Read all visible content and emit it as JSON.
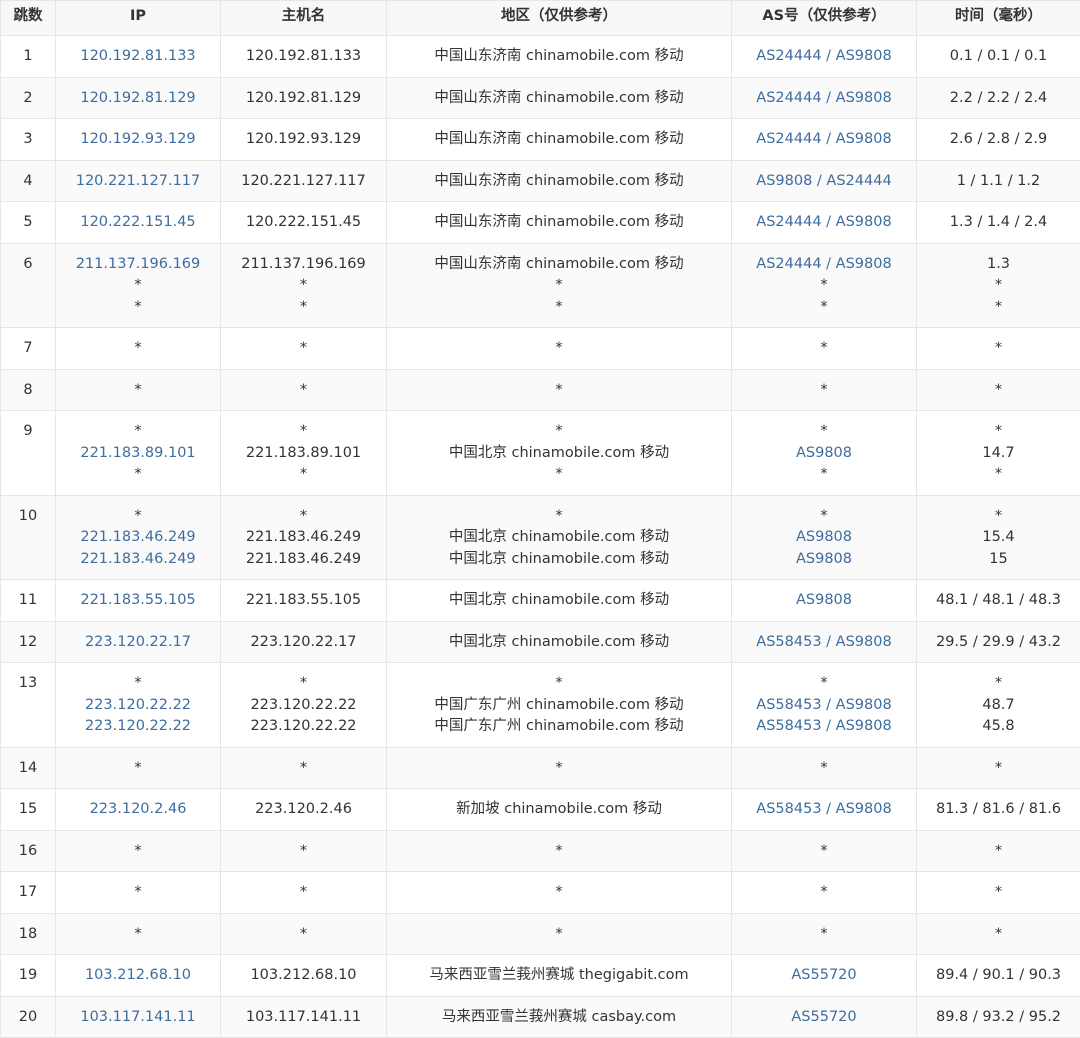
{
  "table": {
    "header": [
      "跳数",
      "IP",
      "主机名",
      "地区（仅供参考）",
      "AS号（仅供参考）",
      "时间（毫秒）"
    ],
    "rows": [
      [
        "1",
        [
          "120.192.81.133"
        ],
        [
          "120.192.81.133"
        ],
        [
          "中国山东济南 chinamobile.com 移动"
        ],
        [
          "AS24444 / AS9808"
        ],
        [
          "0.1 / 0.1 / 0.1"
        ]
      ],
      [
        "2",
        [
          "120.192.81.129"
        ],
        [
          "120.192.81.129"
        ],
        [
          "中国山东济南 chinamobile.com 移动"
        ],
        [
          "AS24444 / AS9808"
        ],
        [
          "2.2 / 2.2 / 2.4"
        ]
      ],
      [
        "3",
        [
          "120.192.93.129"
        ],
        [
          "120.192.93.129"
        ],
        [
          "中国山东济南 chinamobile.com 移动"
        ],
        [
          "AS24444 / AS9808"
        ],
        [
          "2.6 / 2.8 / 2.9"
        ]
      ],
      [
        "4",
        [
          "120.221.127.117"
        ],
        [
          "120.221.127.117"
        ],
        [
          "中国山东济南 chinamobile.com 移动"
        ],
        [
          "AS9808 / AS24444"
        ],
        [
          "1 / 1.1 / 1.2"
        ]
      ],
      [
        "5",
        [
          "120.222.151.45"
        ],
        [
          "120.222.151.45"
        ],
        [
          "中国山东济南 chinamobile.com 移动"
        ],
        [
          "AS24444 / AS9808"
        ],
        [
          "1.3 / 1.4 / 2.4"
        ]
      ],
      [
        "6",
        [
          "211.137.196.169",
          "*",
          "*"
        ],
        [
          "211.137.196.169",
          "*",
          "*"
        ],
        [
          "中国山东济南 chinamobile.com 移动",
          "*",
          "*"
        ],
        [
          "AS24444 / AS9808",
          "*",
          "*"
        ],
        [
          "1.3",
          "*",
          "*"
        ]
      ],
      [
        "7",
        [
          "*"
        ],
        [
          "*"
        ],
        [
          "*"
        ],
        [
          "*"
        ],
        [
          "*"
        ]
      ],
      [
        "8",
        [
          "*"
        ],
        [
          "*"
        ],
        [
          "*"
        ],
        [
          "*"
        ],
        [
          "*"
        ]
      ],
      [
        "9",
        [
          "*",
          "221.183.89.101",
          "*"
        ],
        [
          "*",
          "221.183.89.101",
          "*"
        ],
        [
          "*",
          "中国北京 chinamobile.com 移动",
          "*"
        ],
        [
          "*",
          "AS9808",
          "*"
        ],
        [
          "*",
          "14.7",
          "*"
        ]
      ],
      [
        "10",
        [
          "*",
          "221.183.46.249",
          "221.183.46.249"
        ],
        [
          "*",
          "221.183.46.249",
          "221.183.46.249"
        ],
        [
          "*",
          "中国北京 chinamobile.com 移动",
          "中国北京 chinamobile.com 移动"
        ],
        [
          "*",
          "AS9808",
          "AS9808"
        ],
        [
          "*",
          "15.4",
          "15"
        ]
      ],
      [
        "11",
        [
          "221.183.55.105"
        ],
        [
          "221.183.55.105"
        ],
        [
          "中国北京 chinamobile.com 移动"
        ],
        [
          "AS9808"
        ],
        [
          "48.1 / 48.1 / 48.3"
        ]
      ],
      [
        "12",
        [
          "223.120.22.17"
        ],
        [
          "223.120.22.17"
        ],
        [
          "中国北京 chinamobile.com 移动"
        ],
        [
          "AS58453 / AS9808"
        ],
        [
          "29.5 / 29.9 / 43.2"
        ]
      ],
      [
        "13",
        [
          "*",
          "223.120.22.22",
          "223.120.22.22"
        ],
        [
          "*",
          "223.120.22.22",
          "223.120.22.22"
        ],
        [
          "*",
          "中国广东广州 chinamobile.com 移动",
          "中国广东广州 chinamobile.com 移动"
        ],
        [
          "*",
          "AS58453 / AS9808",
          "AS58453 / AS9808"
        ],
        [
          "*",
          "48.7",
          "45.8"
        ]
      ],
      [
        "14",
        [
          "*"
        ],
        [
          "*"
        ],
        [
          "*"
        ],
        [
          "*"
        ],
        [
          "*"
        ]
      ],
      [
        "15",
        [
          "223.120.2.46"
        ],
        [
          "223.120.2.46"
        ],
        [
          "新加坡 chinamobile.com 移动"
        ],
        [
          "AS58453 / AS9808"
        ],
        [
          "81.3 / 81.6 / 81.6"
        ]
      ],
      [
        "16",
        [
          "*"
        ],
        [
          "*"
        ],
        [
          "*"
        ],
        [
          "*"
        ],
        [
          "*"
        ]
      ],
      [
        "17",
        [
          "*"
        ],
        [
          "*"
        ],
        [
          "*"
        ],
        [
          "*"
        ],
        [
          "*"
        ]
      ],
      [
        "18",
        [
          "*"
        ],
        [
          "*"
        ],
        [
          "*"
        ],
        [
          "*"
        ],
        [
          "*"
        ]
      ],
      [
        "19",
        [
          "103.212.68.10"
        ],
        [
          "103.212.68.10"
        ],
        [
          "马来西亚雪兰莪州赛城 thegigabit.com"
        ],
        [
          "AS55720"
        ],
        [
          "89.4 / 90.1 / 90.3"
        ]
      ],
      [
        "20",
        [
          "103.117.141.11"
        ],
        [
          "103.117.141.11"
        ],
        [
          "马来西亚雪兰莪州赛城 casbay.com"
        ],
        [
          "AS55720"
        ],
        [
          "89.8 / 93.2 / 95.2"
        ]
      ]
    ]
  }
}
